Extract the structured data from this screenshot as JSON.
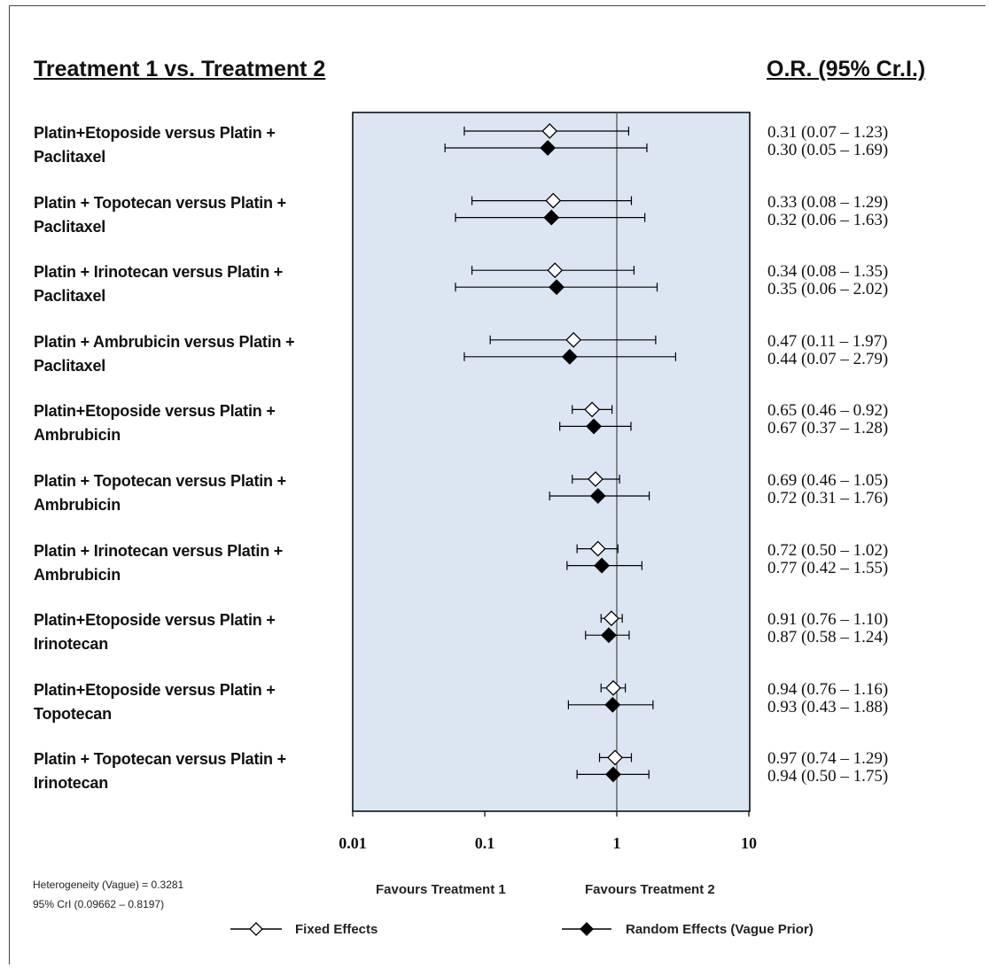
{
  "header": {
    "left_title": "Treatment 1 vs. Treatment 2",
    "right_title": "O.R. (95% Cr.I.)"
  },
  "chart_data": {
    "type": "forest",
    "xscale": "log",
    "xlim": [
      0.01,
      10
    ],
    "xticks": [
      "0.01",
      "0.1",
      "1",
      "10"
    ],
    "reference_line": 1,
    "rows": [
      {
        "label": "Platin+Etoposide versus Platin + Paclitaxel",
        "fixed": {
          "or": 0.31,
          "lo": 0.07,
          "hi": 1.23,
          "text": "0.31 (0.07 – 1.23)"
        },
        "random": {
          "or": 0.3,
          "lo": 0.05,
          "hi": 1.69,
          "text": "0.30 (0.05 – 1.69)"
        }
      },
      {
        "label": "Platin + Topotecan versus Platin + Paclitaxel",
        "fixed": {
          "or": 0.33,
          "lo": 0.08,
          "hi": 1.29,
          "text": "0.33 (0.08 – 1.29)"
        },
        "random": {
          "or": 0.32,
          "lo": 0.06,
          "hi": 1.63,
          "text": "0.32 (0.06 – 1.63)"
        }
      },
      {
        "label": "Platin + Irinotecan versus Platin + Paclitaxel",
        "fixed": {
          "or": 0.34,
          "lo": 0.08,
          "hi": 1.35,
          "text": "0.34 (0.08 – 1.35)"
        },
        "random": {
          "or": 0.35,
          "lo": 0.06,
          "hi": 2.02,
          "text": "0.35 (0.06 – 2.02)"
        }
      },
      {
        "label": "Platin + Ambrubicin versus Platin + Paclitaxel",
        "fixed": {
          "or": 0.47,
          "lo": 0.11,
          "hi": 1.97,
          "text": "0.47 (0.11 – 1.97)"
        },
        "random": {
          "or": 0.44,
          "lo": 0.07,
          "hi": 2.79,
          "text": "0.44 (0.07 – 2.79)"
        }
      },
      {
        "label": "Platin+Etoposide versus Platin + Ambrubicin",
        "fixed": {
          "or": 0.65,
          "lo": 0.46,
          "hi": 0.92,
          "text": "0.65 (0.46 – 0.92)"
        },
        "random": {
          "or": 0.67,
          "lo": 0.37,
          "hi": 1.28,
          "text": "0.67 (0.37 – 1.28)"
        }
      },
      {
        "label": "Platin + Topotecan versus Platin + Ambrubicin",
        "fixed": {
          "or": 0.69,
          "lo": 0.46,
          "hi": 1.05,
          "text": "0.69 (0.46 – 1.05)"
        },
        "random": {
          "or": 0.72,
          "lo": 0.31,
          "hi": 1.76,
          "text": "0.72 (0.31 – 1.76)"
        }
      },
      {
        "label": "Platin + Irinotecan versus Platin + Ambrubicin",
        "fixed": {
          "or": 0.72,
          "lo": 0.5,
          "hi": 1.02,
          "text": "0.72 (0.50 – 1.02)"
        },
        "random": {
          "or": 0.77,
          "lo": 0.42,
          "hi": 1.55,
          "text": "0.77 (0.42 – 1.55)"
        }
      },
      {
        "label": "Platin+Etoposide versus Platin + Irinotecan",
        "fixed": {
          "or": 0.91,
          "lo": 0.76,
          "hi": 1.1,
          "text": "0.91 (0.76 – 1.10)"
        },
        "random": {
          "or": 0.87,
          "lo": 0.58,
          "hi": 1.24,
          "text": "0.87 (0.58 – 1.24)"
        }
      },
      {
        "label": "Platin+Etoposide versus Platin + Topotecan",
        "fixed": {
          "or": 0.94,
          "lo": 0.76,
          "hi": 1.16,
          "text": "0.94 (0.76 – 1.16)"
        },
        "random": {
          "or": 0.93,
          "lo": 0.43,
          "hi": 1.88,
          "text": "0.93 (0.43 – 1.88)"
        }
      },
      {
        "label": "Platin + Topotecan versus Platin + Irinotecan",
        "fixed": {
          "or": 0.97,
          "lo": 0.74,
          "hi": 1.29,
          "text": "0.97 (0.74 – 1.29)"
        },
        "random": {
          "or": 0.94,
          "lo": 0.5,
          "hi": 1.75,
          "text": "0.94 (0.50 – 1.75)"
        }
      }
    ],
    "favours_left": "Favours Treatment 1",
    "favours_right": "Favours Treatment 2",
    "legend": [
      {
        "name": "Fixed Effects",
        "marker": "open-diamond"
      },
      {
        "name": "Random Effects (Vague Prior)",
        "marker": "filled-diamond"
      }
    ],
    "colors": {
      "panel": "#dce6f2",
      "marker": "#000000",
      "open_fill": "#ffffff"
    }
  },
  "footnotes": {
    "heterogeneity": "Heterogeneity (Vague) = 0.3281",
    "cri": "95% CrI (0.09662 – 0.8197)"
  }
}
